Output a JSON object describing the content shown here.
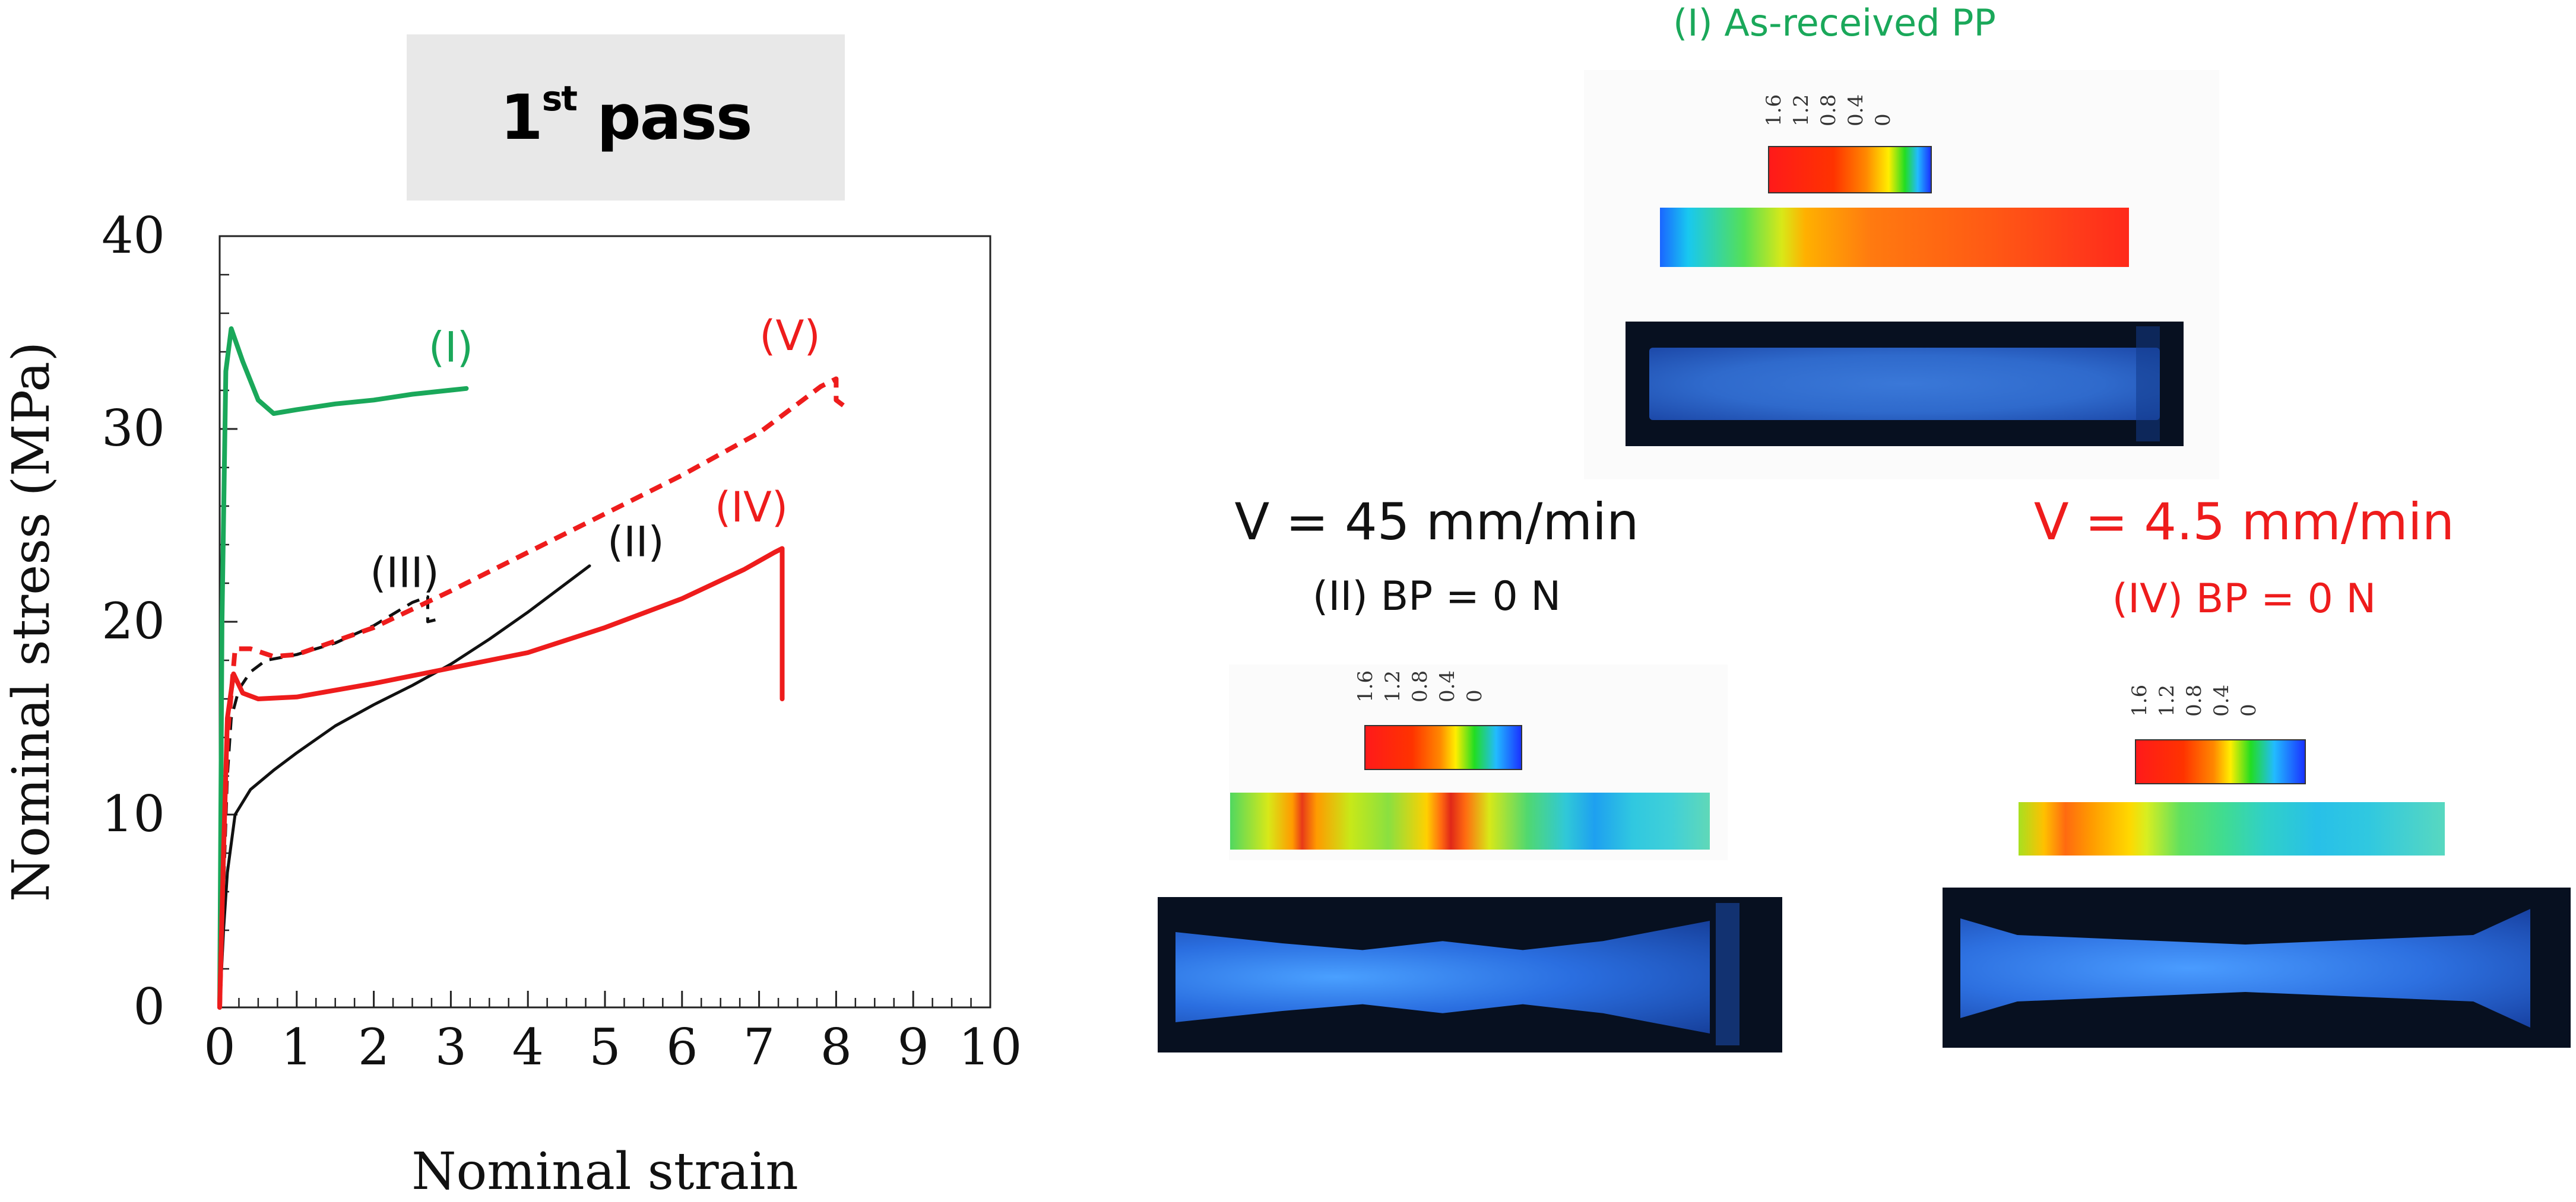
{
  "header": {
    "pass_main": "1",
    "pass_sup": "st",
    "pass_tail": " pass"
  },
  "chart_data": {
    "type": "line",
    "title": "",
    "xlabel": "Nominal strain",
    "ylabel": "Nominal stress (MPa)",
    "xlim": [
      0,
      10
    ],
    "ylim": [
      0,
      40
    ],
    "xticks": [
      0,
      1,
      2,
      3,
      4,
      5,
      6,
      7,
      8,
      9,
      10
    ],
    "yticks": [
      0,
      10,
      20,
      30,
      40
    ],
    "grid": false,
    "series": [
      {
        "name": "(I)",
        "color": "#1aa85a",
        "dash": false,
        "label_at": [
          3.0,
          33.5
        ],
        "x": [
          0,
          0.03,
          0.08,
          0.15,
          0.3,
          0.5,
          0.7,
          1.0,
          1.5,
          2.0,
          2.5,
          3.2
        ],
        "y": [
          0,
          20,
          33,
          35.2,
          33.5,
          31.5,
          30.8,
          31.0,
          31.3,
          31.5,
          31.8,
          32.1
        ]
      },
      {
        "name": "(II)",
        "color": "#111111",
        "dash": false,
        "label_at": [
          5.4,
          23.4
        ],
        "x": [
          0,
          0.05,
          0.1,
          0.2,
          0.4,
          0.7,
          1.0,
          1.5,
          2.0,
          2.5,
          3.0,
          3.5,
          4.0,
          4.5,
          4.8
        ],
        "y": [
          0,
          4,
          7,
          10,
          11.3,
          12.3,
          13.2,
          14.6,
          15.7,
          16.7,
          17.8,
          19.1,
          20.5,
          22.0,
          22.9
        ]
      },
      {
        "name": "(III)",
        "color": "#111111",
        "dash": true,
        "label_at": [
          2.4,
          21.8
        ],
        "x": [
          0,
          0.05,
          0.1,
          0.15,
          0.25,
          0.4,
          0.6,
          1.0,
          1.5,
          2.0,
          2.5,
          2.7,
          2.7,
          2.8
        ],
        "y": [
          0,
          6,
          12,
          15,
          16.5,
          17.4,
          18.0,
          18.3,
          18.9,
          19.8,
          21.0,
          21.3,
          20.0,
          20.1
        ]
      },
      {
        "name": "(IV)",
        "color": "#ee1c1c",
        "dash": false,
        "label_at": [
          6.9,
          25.2
        ],
        "x": [
          0,
          0.05,
          0.1,
          0.18,
          0.3,
          0.5,
          1.0,
          2.0,
          3.0,
          4.0,
          5.0,
          6.0,
          6.8,
          7.2,
          7.3,
          7.3
        ],
        "y": [
          0,
          8,
          15,
          17.3,
          16.3,
          16.0,
          16.1,
          16.8,
          17.6,
          18.4,
          19.7,
          21.2,
          22.7,
          23.6,
          23.8,
          16.0
        ]
      },
      {
        "name": "(V)",
        "color": "#ee1c1c",
        "dash": true,
        "label_at": [
          7.4,
          34.1
        ],
        "x": [
          0,
          0.05,
          0.1,
          0.2,
          0.4,
          0.7,
          1.0,
          2.0,
          3.0,
          4.0,
          5.0,
          6.0,
          7.0,
          7.5,
          7.8,
          8.0,
          8.0,
          8.1
        ],
        "y": [
          0,
          8,
          14,
          18.6,
          18.6,
          18.2,
          18.3,
          19.7,
          21.6,
          23.6,
          25.6,
          27.6,
          29.8,
          31.3,
          32.2,
          32.6,
          31.5,
          31.2
        ]
      }
    ]
  },
  "panels": {
    "top": {
      "title": "(I) As-received PP",
      "title_color": "#1aa85a"
    },
    "left": {
      "title": "V = 45 mm/min",
      "title_color": "#111111",
      "subtitle": "(II) BP = 0 N",
      "subtitle_color": "#111111"
    },
    "right": {
      "title": "V = 4.5 mm/min",
      "title_color": "#ee1c1c",
      "subtitle": "(IV) BP = 0 N",
      "subtitle_color": "#ee1c1c"
    }
  },
  "colorbar": {
    "ticks": [
      "1.6",
      "1.2",
      "0.8",
      "0.4",
      "0"
    ]
  }
}
